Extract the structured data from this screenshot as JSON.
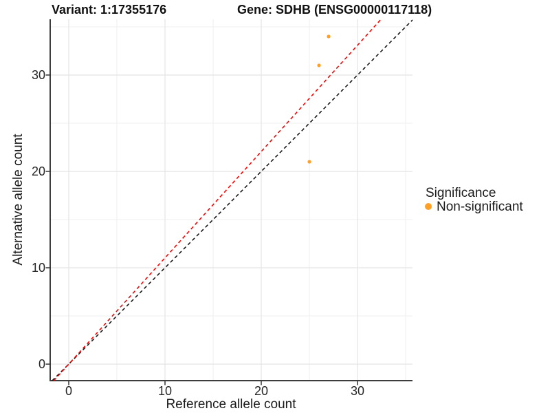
{
  "header": {
    "variant_title": "Variant: 1:17355176",
    "gene_title": "Gene: SDHB (ENSG00000117118)"
  },
  "chart_data": {
    "type": "scatter",
    "title": "Variant: 1:17355176   Gene: SDHB (ENSG00000117118)",
    "xlabel": "Reference allele count",
    "ylabel": "Alternative allele count",
    "xlim": [
      -1.9,
      35.7
    ],
    "ylim": [
      -1.7,
      35.8
    ],
    "x_ticks": [
      "0",
      "10",
      "20",
      "30"
    ],
    "x_tick_values": [
      0,
      10,
      20,
      30
    ],
    "y_ticks": [
      "0",
      "10",
      "20",
      "30"
    ],
    "y_tick_values": [
      0,
      10,
      20,
      30
    ],
    "x_minor_values": [
      5,
      15,
      25,
      35
    ],
    "y_minor_values": [
      5,
      15,
      25,
      35
    ],
    "grid": true,
    "points": [
      {
        "x": 27,
        "y": 34,
        "series": "Non-significant"
      },
      {
        "x": 26,
        "y": 31,
        "series": "Non-significant"
      },
      {
        "x": 25,
        "y": 21,
        "series": "Non-significant"
      }
    ],
    "point_color": "#FFA024",
    "point_radius": 2.6,
    "lines": [
      {
        "name": "identity-line",
        "slope": 1.0,
        "intercept": 0,
        "color": "#1a1a1a",
        "style": "dashed"
      },
      {
        "name": "allelic-ratio-line",
        "slope": 1.103,
        "intercept": 0,
        "color": "#ff0000",
        "style": "dashed"
      }
    ],
    "legend": {
      "position": "right",
      "title": "Significance",
      "items": [
        {
          "label": "Non-significant",
          "color": "#FFA024"
        }
      ]
    },
    "colors": {
      "axis_line": "#3d3d3d",
      "tick_mark": "#333333",
      "grid_major": "#e4e4e4",
      "grid_minor": "#efefef",
      "background": "#ffffff"
    }
  }
}
